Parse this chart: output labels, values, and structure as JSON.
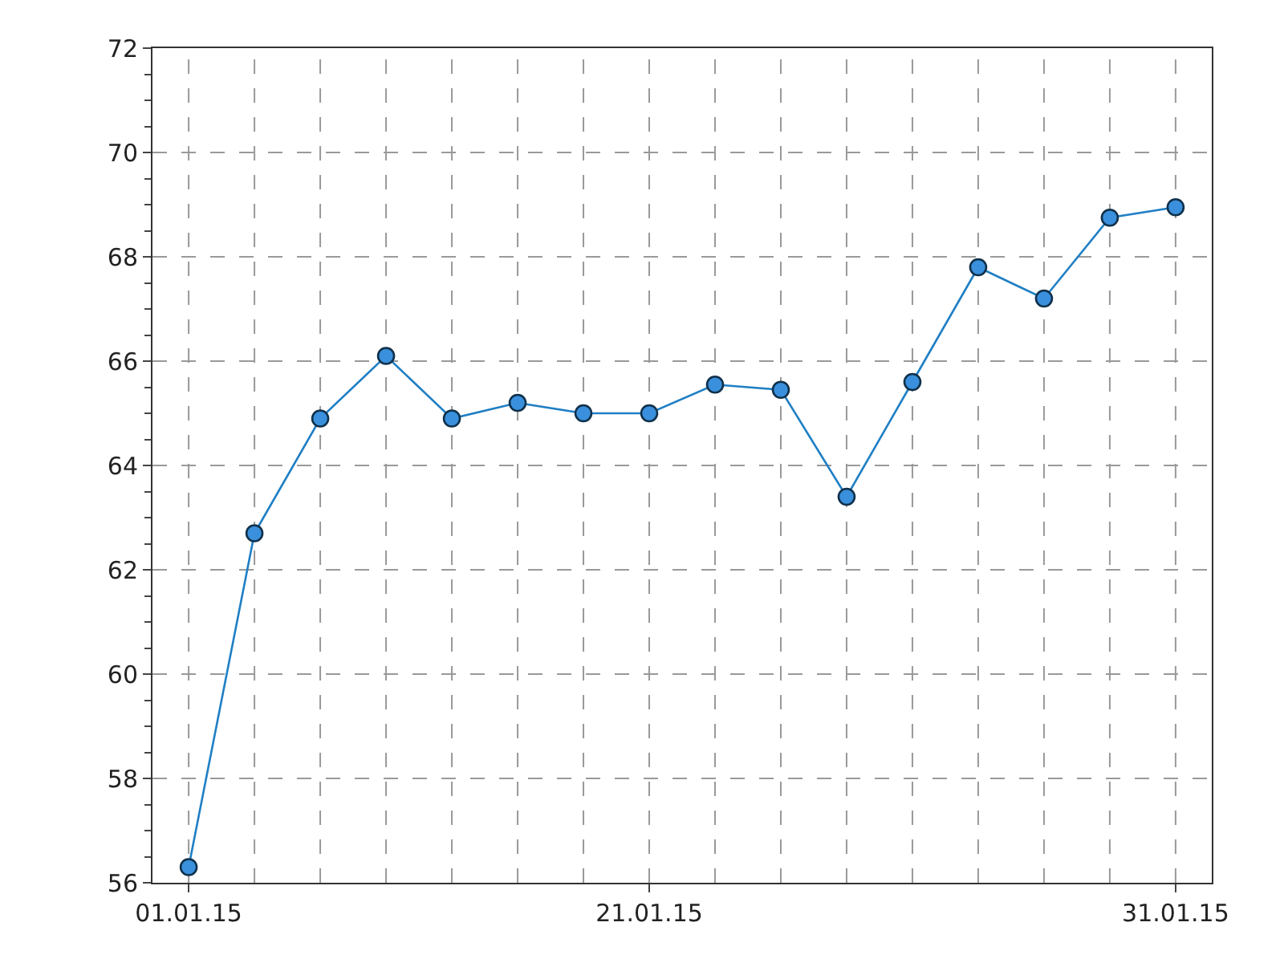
{
  "chart_data": {
    "type": "line",
    "categories": [
      "01.01.15",
      null,
      null,
      null,
      null,
      null,
      null,
      "21.01.15",
      null,
      null,
      null,
      null,
      null,
      null,
      null,
      "31.01.15"
    ],
    "series": [
      {
        "color": "#1f7fc4",
        "values": [
          56.3,
          62.7,
          64.9,
          66.1,
          64.9,
          65.2,
          65.0,
          65.0,
          65.55,
          65.45,
          63.4,
          65.6,
          67.8,
          67.2,
          68.75,
          68.95
        ]
      }
    ],
    "ylim": [
      56,
      72
    ],
    "yticks": [
      56,
      58,
      60,
      62,
      64,
      66,
      68,
      70,
      72
    ],
    "grid": true,
    "marker": "circle",
    "line_style": "solid"
  }
}
